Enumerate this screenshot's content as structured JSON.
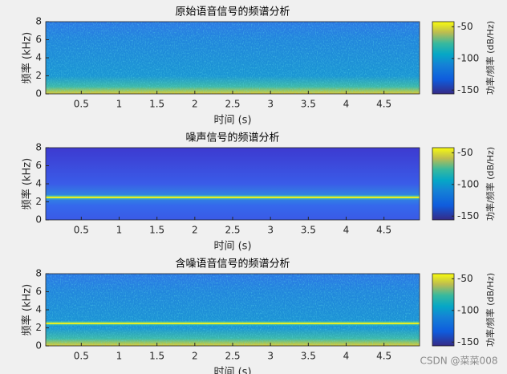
{
  "chart_data": [
    {
      "type": "spectrogram",
      "title": "原始语音信号的频谱分析",
      "xlabel": "时间 (s)",
      "ylabel": "频率 (kHz)",
      "xlim": [
        0.03,
        4.97
      ],
      "xticks": [
        0.5,
        1,
        1.5,
        2,
        2.5,
        3,
        3.5,
        4,
        4.5
      ],
      "ylim": [
        0,
        8
      ],
      "yticks": [
        0,
        2,
        4,
        6,
        8
      ],
      "colorbar_label": "功率/频率 (dB/Hz)",
      "clim": [
        -156,
        -42
      ],
      "cticks": [
        -150,
        -100,
        -50
      ]
    },
    {
      "type": "spectrogram",
      "title": "噪声信号的频谱分析",
      "xlabel": "时间 (s)",
      "ylabel": "频率 (kHz)",
      "xlim": [
        0.03,
        4.97
      ],
      "xticks": [
        0.5,
        1,
        1.5,
        2,
        2.5,
        3,
        3.5,
        4,
        4.5
      ],
      "ylim": [
        0,
        8
      ],
      "yticks": [
        0,
        2,
        4,
        6,
        8
      ],
      "colorbar_label": "功率/频率 (dB/Hz)",
      "clim": [
        -156,
        -42
      ],
      "cticks": [
        -150,
        -100,
        -50
      ],
      "tone_khz": 2.5
    },
    {
      "type": "spectrogram",
      "title": "含噪语音信号的频谱分析",
      "xlabel": "时间 (s)",
      "ylabel": "频率 (kHz)",
      "xlim": [
        0.03,
        4.97
      ],
      "xticks": [
        0.5,
        1,
        1.5,
        2,
        2.5,
        3,
        3.5,
        4,
        4.5
      ],
      "ylim": [
        0,
        8
      ],
      "yticks": [
        0,
        2,
        4,
        6,
        8
      ],
      "colorbar_label": "功率/频率 (dB/Hz)",
      "clim": [
        -156,
        -42
      ],
      "cticks": [
        -150,
        -100,
        -50
      ],
      "tone_khz": 2.5
    }
  ],
  "watermark": "CSDN @菜菜008"
}
